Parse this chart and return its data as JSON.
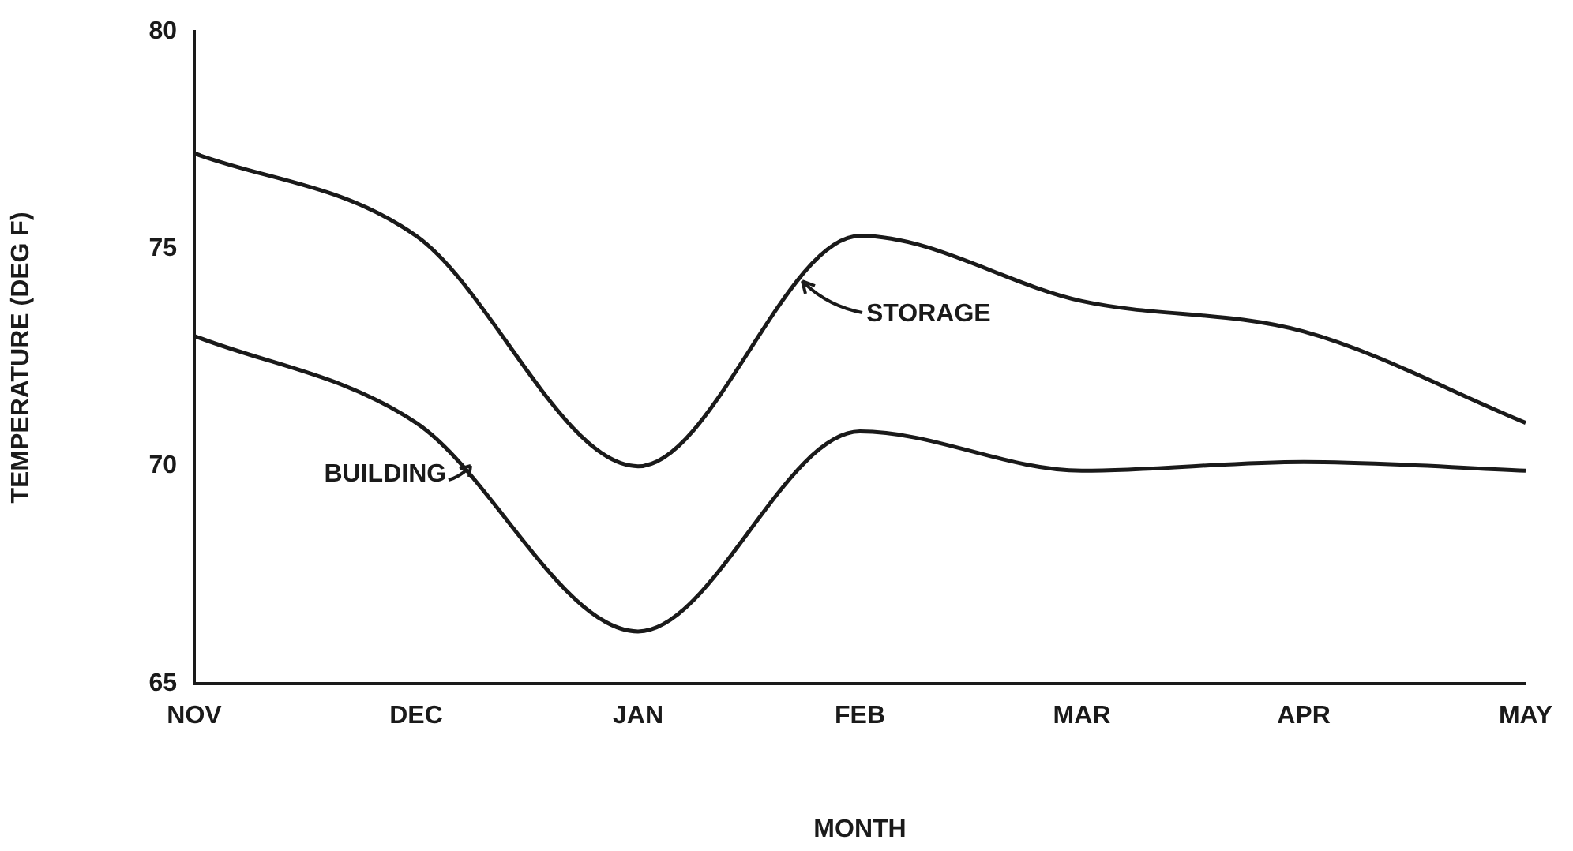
{
  "chart_data": {
    "type": "line",
    "xlabel": "MONTH",
    "ylabel": "TEMPERATURE (DEG F)",
    "categories": [
      "NOV",
      "DEC",
      "JAN",
      "FEB",
      "MAR",
      "APR",
      "MAY"
    ],
    "series": [
      {
        "name": "STORAGE",
        "color": "#1a1a1a",
        "values": [
          77.2,
          75.3,
          70.0,
          75.3,
          73.8,
          73.1,
          71.0
        ]
      },
      {
        "name": "BUILDING",
        "color": "#1a1a1a",
        "values": [
          73.0,
          71.0,
          66.2,
          70.8,
          69.9,
          70.1,
          69.9
        ]
      }
    ],
    "ylim": [
      65,
      80
    ],
    "yticks": [
      65,
      70,
      75,
      80
    ],
    "grid": false,
    "marker": "none",
    "line_style": "solid"
  }
}
